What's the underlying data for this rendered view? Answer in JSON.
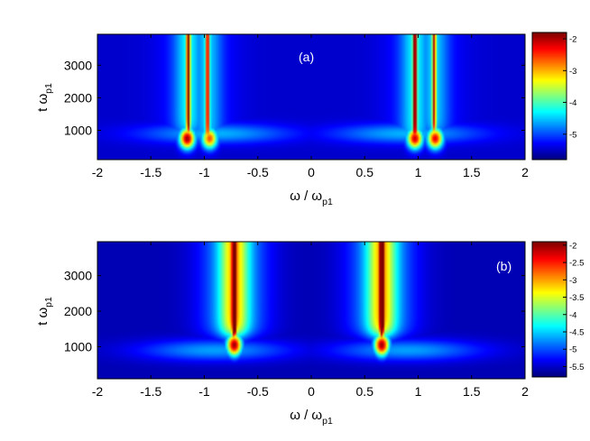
{
  "chart_data": [
    {
      "type": "heatmap",
      "panel_label": "(a)",
      "xlabel": {
        "main": "ω / ω",
        "sub": "p1"
      },
      "ylabel": {
        "main": "t ω",
        "sub": "p1"
      },
      "xlim": [
        -2,
        2
      ],
      "ylim": [
        100,
        3950
      ],
      "xticks": [
        -2,
        -1.5,
        -1,
        -0.5,
        0,
        0.5,
        1,
        1.5,
        2
      ],
      "xtick_labels": [
        "-2",
        "-1.5",
        "-1",
        "-0.5",
        "0",
        "0.5",
        "1",
        "1.5",
        "2"
      ],
      "yticks": [
        1000,
        2000,
        3000
      ],
      "ytick_labels": [
        "1000",
        "2000",
        "3000"
      ],
      "colormap": "jet",
      "colorbar": {
        "range": [
          -5.8,
          -1.8
        ],
        "reversed": true,
        "ticks": [
          -2,
          -3,
          -4,
          -5
        ],
        "tick_labels": [
          "-2",
          "-3",
          "-4",
          "-5"
        ]
      },
      "features": {
        "vertical_lines": [
          {
            "x": -1.15,
            "strength": 1.0,
            "onset": 900
          },
          {
            "x": -0.97,
            "strength": 0.85,
            "onset": 700
          },
          {
            "x": 0.97,
            "strength": 1.0,
            "onset": 700
          },
          {
            "x": 1.15,
            "strength": 0.85,
            "onset": 900
          }
        ],
        "hotspots": [
          {
            "x": -1.16,
            "t": 750,
            "value": -1.9
          },
          {
            "x": 1.16,
            "t": 750,
            "value": -2.2
          },
          {
            "x": 0.97,
            "t": 750,
            "value": -2.1
          },
          {
            "x": -0.95,
            "t": 750,
            "value": -2.6
          }
        ],
        "background": -5.5
      }
    },
    {
      "type": "heatmap",
      "panel_label": "(b)",
      "xlabel": {
        "main": "ω / ω",
        "sub": "p1"
      },
      "ylabel": {
        "main": "t ω",
        "sub": "p1"
      },
      "xlim": [
        -2,
        2
      ],
      "ylim": [
        100,
        3950
      ],
      "xticks": [
        -2,
        -1.5,
        -1,
        -0.5,
        0,
        0.5,
        1,
        1.5,
        2
      ],
      "xtick_labels": [
        "-2",
        "-1.5",
        "-1",
        "-0.5",
        "0",
        "0.5",
        "1",
        "1.5",
        "2"
      ],
      "yticks": [
        1000,
        2000,
        3000
      ],
      "ytick_labels": [
        "1000",
        "2000",
        "3000"
      ],
      "colormap": "jet",
      "colorbar": {
        "range": [
          -5.8,
          -1.9
        ],
        "reversed": true,
        "ticks": [
          -2,
          -2.5,
          -3,
          -3.5,
          -4,
          -4.5,
          -5,
          -5.5
        ],
        "tick_labels": [
          "-2",
          "-2.5",
          "-3",
          "-3.5",
          "-4",
          "-4.5",
          "-5",
          "-5.5"
        ]
      },
      "features": {
        "vertical_lines": [
          {
            "x": -0.72,
            "strength": 1.0,
            "onset": 1300
          },
          {
            "x": 0.66,
            "strength": 1.0,
            "onset": 1300
          }
        ],
        "hotspots": [
          {
            "x": -0.72,
            "t": 1050,
            "value": -2.0
          },
          {
            "x": 0.66,
            "t": 1050,
            "value": -2.0
          }
        ],
        "background": -5.6
      }
    }
  ]
}
